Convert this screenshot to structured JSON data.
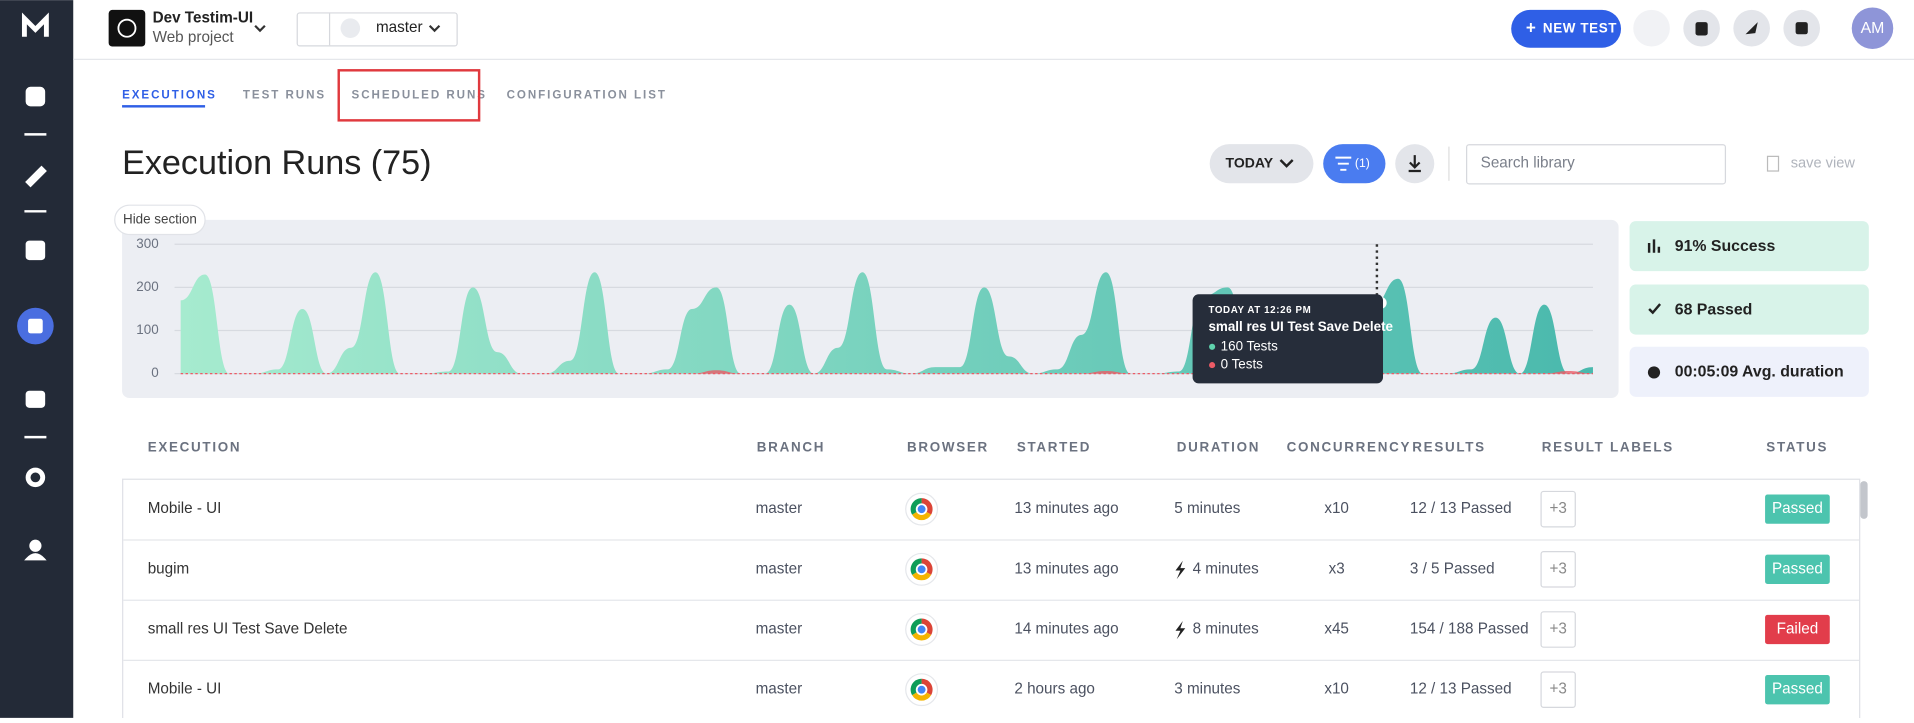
{
  "header": {
    "project_name": "Dev Testim-UI",
    "project_type": "Web project",
    "branch": "master",
    "new_test": "NEW TEST",
    "avatar": "AM"
  },
  "tabs": [
    "EXECUTIONS",
    "TEST RUNS",
    "SCHEDULED RUNS",
    "CONFIGURATION LIST"
  ],
  "page_title": "Execution Runs (75)",
  "toolbar": {
    "date_filter": "TODAY",
    "filter_count": "(1)",
    "search_placeholder": "Search library",
    "save_view": "save view"
  },
  "hide_section": "Hide section",
  "chart": {
    "type": "area",
    "ylim": [
      0,
      300
    ],
    "yticks": [
      0,
      100,
      200,
      300
    ],
    "series": [
      {
        "color": "#5fd3ad",
        "values": [
          170,
          230,
          0,
          0,
          10,
          150,
          0,
          60,
          235,
          0,
          0,
          5,
          200,
          50,
          0,
          0,
          30,
          235,
          0,
          0,
          10,
          150,
          200,
          0,
          0,
          160,
          0,
          60,
          235,
          10,
          0,
          15,
          15,
          200,
          40,
          0,
          10,
          90,
          235,
          0,
          0,
          5,
          180,
          200,
          0,
          0,
          0,
          0,
          0,
          160,
          220,
          0,
          0,
          10,
          130,
          0,
          160,
          0,
          15
        ]
      },
      {
        "color": "#ec5b66",
        "values": [
          0,
          0,
          0,
          0,
          0,
          0,
          0,
          0,
          0,
          0,
          0,
          0,
          0,
          0,
          0,
          0,
          0,
          0,
          0,
          0,
          0,
          0,
          8,
          0,
          0,
          0,
          0,
          0,
          0,
          0,
          0,
          0,
          0,
          0,
          0,
          0,
          0,
          0,
          6,
          0,
          0,
          0,
          0,
          0,
          0,
          0,
          0,
          0,
          0,
          0,
          0,
          0,
          0,
          0,
          0,
          0,
          0,
          6,
          0
        ]
      }
    ]
  },
  "tooltip": {
    "time": "TODAY AT 12:26 PM",
    "name": "small res UI Test Save Delete",
    "passed": "160 Tests",
    "failed": "0 Tests"
  },
  "stats": [
    "91% Success",
    "68 Passed",
    "00:05:09 Avg. duration"
  ],
  "table": {
    "columns": [
      "EXECUTION",
      "BRANCH",
      "BROWSER",
      "STARTED",
      "DURATION",
      "CONCURRENCY",
      "RESULTS",
      "RESULT LABELS",
      "STATUS"
    ],
    "rows": [
      {
        "name": "Mobile - UI",
        "branch": "master",
        "started": "13 minutes ago",
        "duration": "5 minutes",
        "fast": false,
        "concurrency": "x10",
        "results": "12 / 13 Passed",
        "labels": "+3",
        "status": "Passed",
        "status_color": "#4cc4ae"
      },
      {
        "name": "bugim",
        "branch": "master",
        "started": "13 minutes ago",
        "duration": "4 minutes",
        "fast": true,
        "concurrency": "x3",
        "results": "3 / 5 Passed",
        "labels": "+3",
        "status": "Passed",
        "status_color": "#4cc4ae"
      },
      {
        "name": "small res UI Test Save Delete",
        "branch": "master",
        "started": "14 minutes ago",
        "duration": "8 minutes",
        "fast": true,
        "concurrency": "x45",
        "results": "154 / 188 Passed",
        "labels": "+3",
        "status": "Failed",
        "status_color": "#e23d4b"
      },
      {
        "name": "Mobile - UI",
        "branch": "master",
        "started": "2 hours ago",
        "duration": "3 minutes",
        "fast": false,
        "concurrency": "x10",
        "results": "12 / 13 Passed",
        "labels": "+3",
        "status": "Passed",
        "status_color": "#4cc4ae"
      }
    ]
  }
}
